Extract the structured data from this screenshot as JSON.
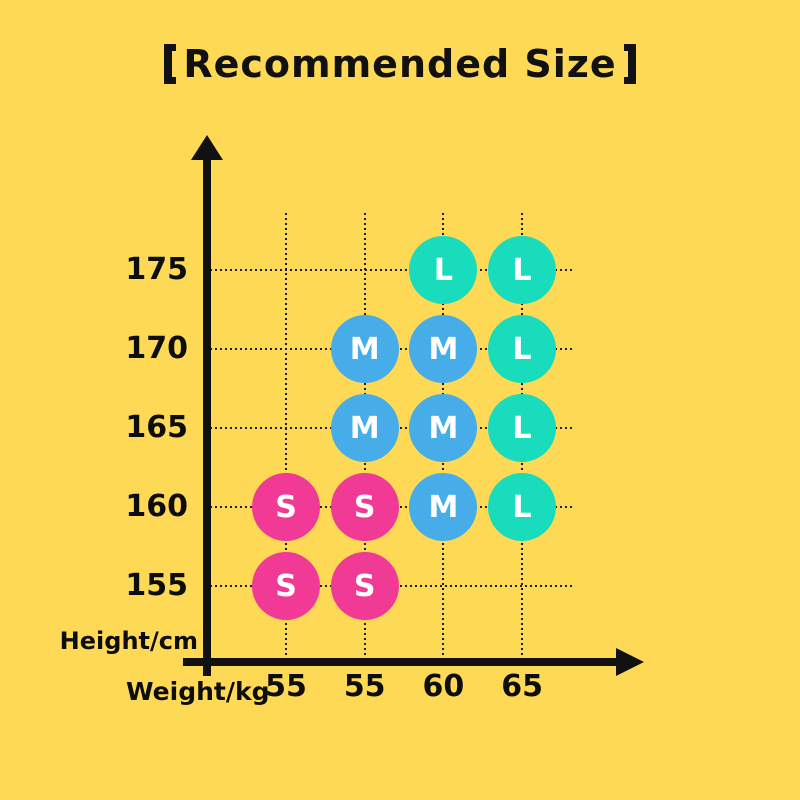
{
  "title": {
    "bracket_left": "【",
    "text": "Recommended Size",
    "bracket_right": "】"
  },
  "colors": {
    "background": "#FED955",
    "axis": "#111111",
    "grid_dots": "#1B1B1B",
    "size_S": "#F03A96",
    "size_M": "#47ADE9",
    "size_L": "#18DCBB",
    "marker_text": "#FFFFFF"
  },
  "chart_data": {
    "type": "scatter",
    "title": "【Recommended Size】",
    "xlabel": "Weight/kg",
    "ylabel": "Height/cm",
    "x_ticks": [
      "55",
      "55",
      "60",
      "65"
    ],
    "y_ticks": [
      "175",
      "170",
      "165",
      "160",
      "155"
    ],
    "grid": "dotted",
    "legend": "none",
    "size_colors": {
      "S": "#F03A96",
      "M": "#47ADE9",
      "L": "#18DCBB"
    },
    "points": [
      {
        "col": 2,
        "row": 0,
        "weight": "60",
        "height": "175",
        "size": "L"
      },
      {
        "col": 3,
        "row": 0,
        "weight": "65",
        "height": "175",
        "size": "L"
      },
      {
        "col": 1,
        "row": 1,
        "weight": "55",
        "height": "170",
        "size": "M"
      },
      {
        "col": 2,
        "row": 1,
        "weight": "60",
        "height": "170",
        "size": "M"
      },
      {
        "col": 3,
        "row": 1,
        "weight": "65",
        "height": "170",
        "size": "L"
      },
      {
        "col": 1,
        "row": 2,
        "weight": "55",
        "height": "165",
        "size": "M"
      },
      {
        "col": 2,
        "row": 2,
        "weight": "60",
        "height": "165",
        "size": "M"
      },
      {
        "col": 3,
        "row": 2,
        "weight": "65",
        "height": "165",
        "size": "L"
      },
      {
        "col": 0,
        "row": 3,
        "weight": "55",
        "height": "160",
        "size": "S"
      },
      {
        "col": 1,
        "row": 3,
        "weight": "55",
        "height": "160",
        "size": "S"
      },
      {
        "col": 2,
        "row": 3,
        "weight": "60",
        "height": "160",
        "size": "M"
      },
      {
        "col": 3,
        "row": 3,
        "weight": "65",
        "height": "160",
        "size": "L"
      },
      {
        "col": 0,
        "row": 4,
        "weight": "55",
        "height": "155",
        "size": "S"
      },
      {
        "col": 1,
        "row": 4,
        "weight": "55",
        "height": "155",
        "size": "S"
      }
    ]
  }
}
